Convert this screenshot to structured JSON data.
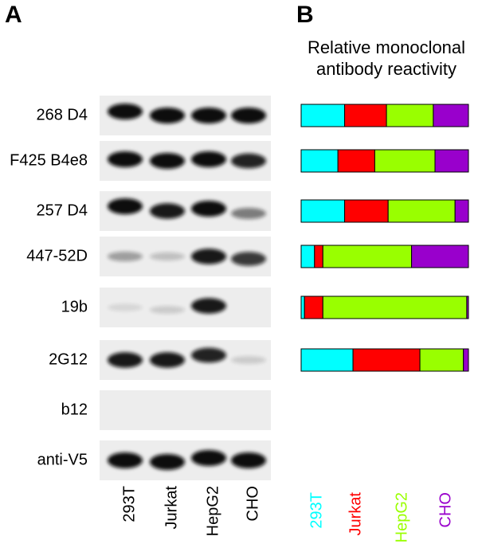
{
  "panel_labels": [
    "A",
    "B"
  ],
  "chart_data": {
    "type": "bar",
    "orientation": "horizontal",
    "stacked": true,
    "title": "Relative monoclonal antibody reactivity",
    "categories": [
      "268 D4",
      "F425 B4e8",
      "257 D4",
      "447-52D",
      "19b",
      "2G12",
      "b12",
      "anti-V5"
    ],
    "series": [
      {
        "name": "293T",
        "color": "#00ffff",
        "values": [
          26,
          22,
          26,
          8,
          2,
          31,
          null,
          null
        ]
      },
      {
        "name": "Jurkat",
        "color": "#ff0000",
        "values": [
          25,
          22,
          26,
          5,
          11,
          40,
          null,
          null
        ]
      },
      {
        "name": "HepG2",
        "color": "#99ff00",
        "values": [
          28,
          36,
          40,
          53,
          86,
          26,
          null,
          null
        ]
      },
      {
        "name": "CHO",
        "color": "#9900cc",
        "values": [
          21,
          20,
          8,
          34,
          1,
          3,
          null,
          null
        ]
      }
    ],
    "xlim": [
      0,
      100
    ]
  }
}
